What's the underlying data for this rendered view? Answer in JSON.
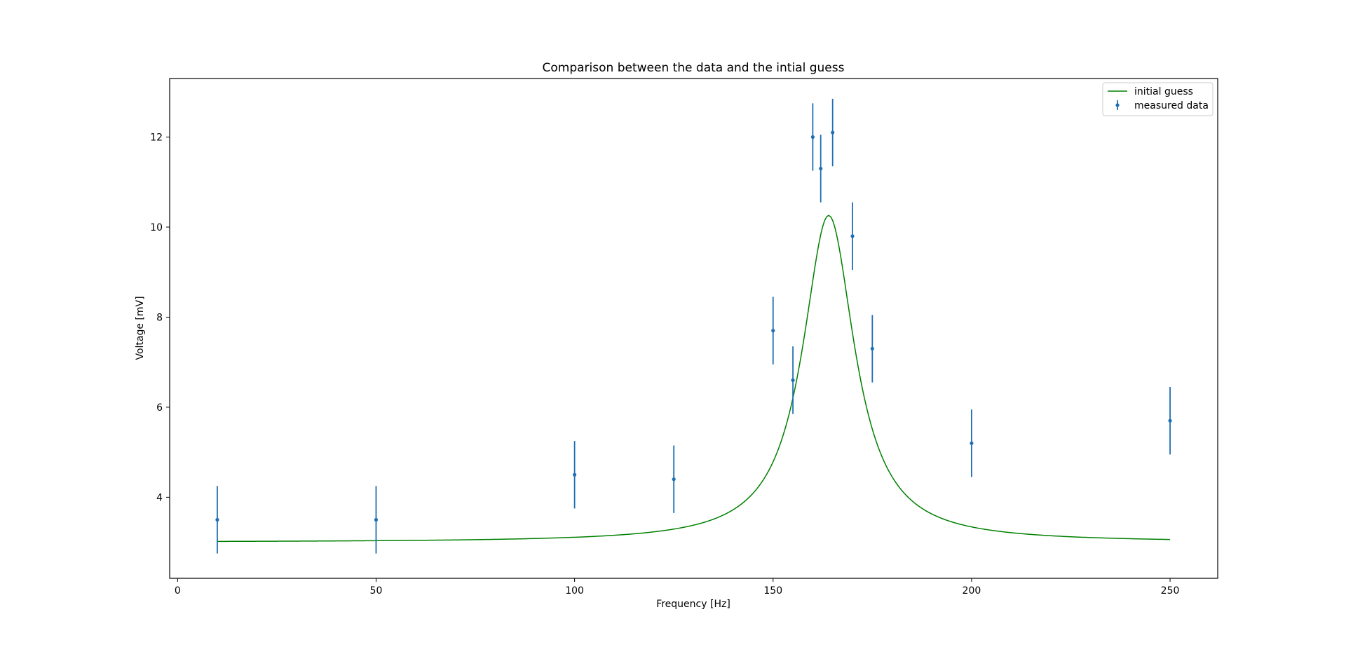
{
  "chart_data": {
    "type": "scatter",
    "title": "Comparison between the data and the intial guess",
    "xlabel": "Frequency [Hz]",
    "ylabel": "Voltage [mV]",
    "xlim": [
      -2.0,
      262.0
    ],
    "ylim": [
      2.2,
      13.3
    ],
    "xticks": [
      0,
      50,
      100,
      150,
      200,
      250
    ],
    "yticks": [
      4,
      6,
      8,
      10,
      12
    ],
    "grid": false,
    "legend_position": "top-right",
    "series": [
      {
        "name": "initial guess",
        "kind": "line",
        "color": "#008000",
        "model": "lorentzian",
        "params": {
          "baseline": 3.0,
          "amplitude": 7.26,
          "center": 164,
          "half_width": 8.0
        },
        "x_range": [
          10,
          250
        ]
      },
      {
        "name": "measured data",
        "kind": "errorbar",
        "color": "#1f6fb4",
        "x": [
          10,
          50,
          100,
          125,
          150,
          155,
          160,
          162,
          165,
          170,
          175,
          200,
          250
        ],
        "y": [
          3.5,
          3.5,
          4.5,
          4.4,
          7.7,
          6.6,
          12.0,
          11.3,
          12.1,
          9.8,
          7.3,
          5.2,
          5.7
        ],
        "err": [
          0.75,
          0.75,
          0.75,
          0.75,
          0.75,
          0.75,
          0.75,
          0.75,
          0.75,
          0.75,
          0.75,
          0.75,
          0.75
        ]
      }
    ]
  }
}
